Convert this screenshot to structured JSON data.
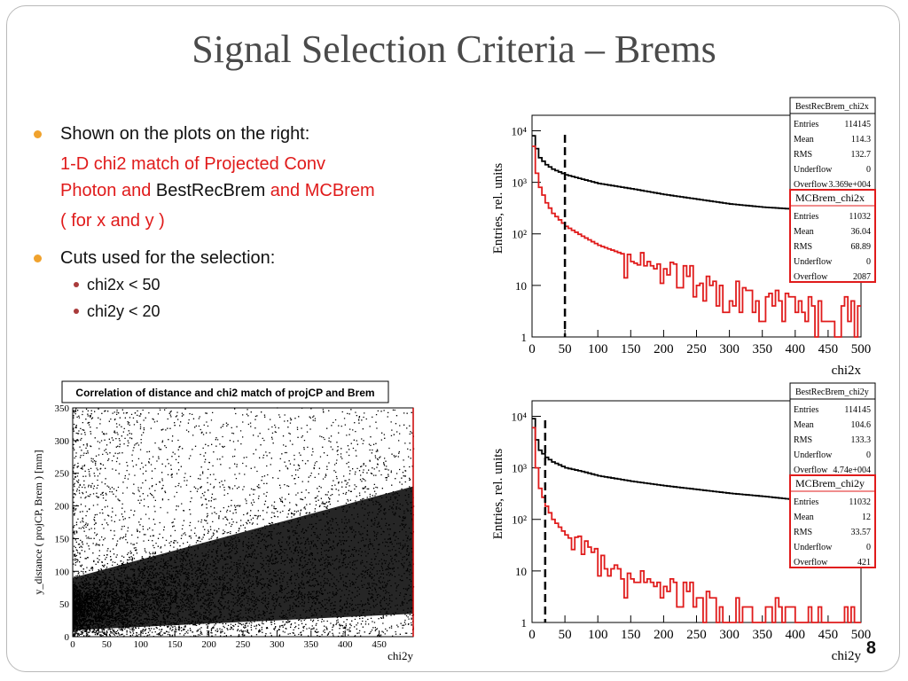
{
  "slide": {
    "title": "Signal Selection Criteria – Brems",
    "page_number": "8",
    "bullets": {
      "item1": "Shown on the plots on the right:",
      "sub_line1": "1-D chi2 match of Projected Conv",
      "sub_line2_a": "Photon and ",
      "sub_line2_b": "BestRecBrem",
      "sub_line2_c": " and MCBrem",
      "sub_line3": "( for x and y )",
      "item2": "Cuts used for the selection:",
      "cut1": "chi2x < 50",
      "cut2": "chi2y < 20"
    },
    "bullet_color": "#f0a22d",
    "red_text_color": "#e01b1b"
  },
  "chart_data": [
    {
      "type": "line",
      "name": "chi2x histogram",
      "xlabel": "chi2x",
      "ylabel": "Entries, rel. units",
      "log_y": true,
      "xlim": [
        0,
        500
      ],
      "ylim": [
        1,
        20000
      ],
      "x_ticks": [
        "0",
        "50",
        "100",
        "150",
        "200",
        "250",
        "300",
        "350",
        "400",
        "450",
        "500"
      ],
      "y_ticks": [
        "1",
        "10",
        "10²",
        "10³",
        "10⁴"
      ],
      "cut_line_x": 50,
      "series": [
        {
          "name": "BestRecBrem_chi2x",
          "color": "#000000",
          "x": [
            0,
            5,
            10,
            20,
            30,
            50,
            75,
            100,
            150,
            200,
            250,
            300,
            350,
            400,
            450
          ],
          "values": [
            8000,
            4500,
            3000,
            2200,
            1800,
            1400,
            1150,
            950,
            750,
            580,
            470,
            380,
            330,
            300,
            280
          ]
        },
        {
          "name": "MCBrem_chi2x",
          "color": "#e01b1b",
          "x": [
            0,
            5,
            10,
            20,
            30,
            50,
            75,
            100,
            150,
            200,
            250,
            300,
            350,
            400,
            450
          ],
          "values": [
            5000,
            1500,
            800,
            400,
            250,
            140,
            90,
            60,
            35,
            20,
            12,
            8,
            5,
            4,
            3
          ]
        }
      ],
      "stats": [
        {
          "title": "BestRecBrem_chi2x",
          "rows": [
            [
              "Entries",
              "114145"
            ],
            [
              "Mean",
              "114.3"
            ],
            [
              "RMS",
              "132.7"
            ],
            [
              "Underflow",
              "0"
            ],
            [
              "Overflow",
              "3.369e+004"
            ]
          ]
        },
        {
          "title": "MCBrem_chi2x",
          "rows": [
            [
              "Entries",
              "11032"
            ],
            [
              "Mean",
              "36.04"
            ],
            [
              "RMS",
              "68.89"
            ],
            [
              "Underflow",
              "0"
            ],
            [
              "Overflow",
              "2087"
            ]
          ]
        }
      ]
    },
    {
      "type": "line",
      "name": "chi2y histogram",
      "xlabel": "chi2y",
      "ylabel": "Entries, rel. units",
      "log_y": true,
      "xlim": [
        0,
        500
      ],
      "ylim": [
        1,
        20000
      ],
      "x_ticks": [
        "0",
        "50",
        "100",
        "150",
        "200",
        "250",
        "300",
        "350",
        "400",
        "450",
        "500"
      ],
      "y_ticks": [
        "1",
        "10",
        "10²",
        "10³",
        "10⁴"
      ],
      "cut_line_x": 20,
      "series": [
        {
          "name": "BestRecBrem_chi2y",
          "color": "#000000",
          "x": [
            0,
            5,
            10,
            20,
            30,
            50,
            75,
            100,
            150,
            200,
            250,
            300,
            350,
            400,
            450
          ],
          "values": [
            9000,
            3500,
            2200,
            1600,
            1300,
            1000,
            850,
            700,
            550,
            450,
            380,
            320,
            280,
            240,
            220
          ]
        },
        {
          "name": "MCBrem_chi2y",
          "color": "#e01b1b",
          "x": [
            0,
            5,
            10,
            20,
            30,
            50,
            75,
            100,
            150,
            200,
            250,
            300,
            350,
            400,
            450
          ],
          "values": [
            6000,
            1000,
            400,
            180,
            100,
            50,
            25,
            15,
            8,
            5,
            3,
            2,
            1.5,
            1.2,
            1
          ]
        }
      ],
      "stats": [
        {
          "title": "BestRecBrem_chi2y",
          "rows": [
            [
              "Entries",
              "114145"
            ],
            [
              "Mean",
              "104.6"
            ],
            [
              "RMS",
              "133.3"
            ],
            [
              "Underflow",
              "0"
            ],
            [
              "Overflow",
              "4.74e+004"
            ]
          ]
        },
        {
          "title": "MCBrem_chi2y",
          "rows": [
            [
              "Entries",
              "11032"
            ],
            [
              "Mean",
              "12"
            ],
            [
              "RMS",
              "33.57"
            ],
            [
              "Underflow",
              "0"
            ],
            [
              "Overflow",
              "421"
            ]
          ]
        }
      ]
    },
    {
      "type": "scatter",
      "name": "2D correlation",
      "title": "Correlation of distance and chi2 match of projCP and Brem",
      "xlabel": "chi2y",
      "ylabel": "y_distance ( projCP, Brem ) [mm]",
      "xlim": [
        0,
        500
      ],
      "ylim": [
        0,
        350
      ],
      "x_ticks": [
        "0",
        "50",
        "100",
        "150",
        "200",
        "250",
        "300",
        "350",
        "400",
        "450"
      ],
      "y_ticks": [
        "0",
        "50",
        "100",
        "150",
        "200",
        "250",
        "300",
        "350"
      ]
    }
  ]
}
